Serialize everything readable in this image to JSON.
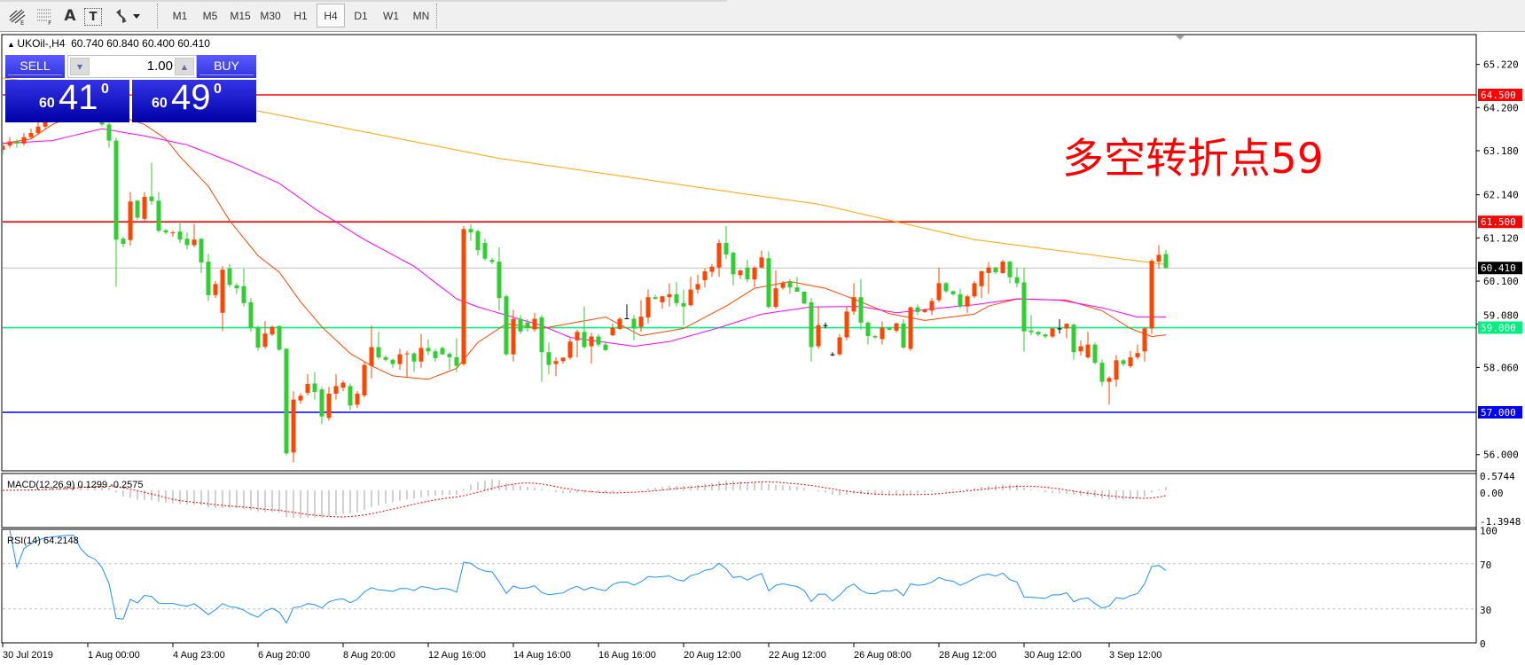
{
  "toolbar": {
    "tools": [
      {
        "icon": "fibonacci-expansion-icon"
      },
      {
        "icon": "fibonacci-lines-icon"
      },
      {
        "icon": "text-icon",
        "label": "A"
      },
      {
        "icon": "text-label-icon",
        "label": "T"
      },
      {
        "icon": "arrows-dropdown-icon"
      }
    ],
    "timeframes": [
      "M1",
      "M5",
      "M15",
      "M30",
      "H1",
      "H4",
      "D1",
      "W1",
      "MN"
    ],
    "active_timeframe": "H4"
  },
  "chart_header": {
    "symbol": "UKOil-,H4",
    "ohlc": "60.740 60.840 60.400 60.410"
  },
  "trade_panel": {
    "sell_label": "SELL",
    "buy_label": "BUY",
    "lot": "1.00",
    "sell_price": {
      "prefix": "60",
      "big": "41",
      "sup": "0"
    },
    "buy_price": {
      "prefix": "60",
      "big": "49",
      "sup": "0"
    }
  },
  "annotation": {
    "text": "多空转折点59",
    "color": "#ff0000"
  },
  "price_axis": {
    "ticks": [
      "65.220",
      "64.200",
      "63.180",
      "62.140",
      "61.120",
      "60.100",
      "59.080",
      "58.060",
      "56.000"
    ]
  },
  "price_tags": [
    {
      "label": "64.500",
      "value": 64.5,
      "color": "#ff0000"
    },
    {
      "label": "61.500",
      "value": 61.5,
      "color": "#ff0000"
    },
    {
      "label": "60.410",
      "value": 60.41,
      "color": "#000000"
    },
    {
      "label": "59.000",
      "value": 59.0,
      "color": "#00f080"
    },
    {
      "label": "57.000",
      "value": 57.0,
      "color": "#0000ff"
    }
  ],
  "macd": {
    "label": "MACD(12,26,9) 0.1299 -0.2575",
    "ticks": [
      "0.5744",
      "0.00",
      "-1.3948"
    ],
    "max": 0.5744,
    "min": -1.3948
  },
  "rsi": {
    "label": "RSI(14) 64.2148",
    "ticks": [
      "100",
      "70",
      "30",
      "0"
    ],
    "levels": [
      70,
      30
    ]
  },
  "time_axis": {
    "labels": [
      "30 Jul 2019",
      "1 Aug 00:00",
      "4 Aug 23:00",
      "6 Aug 20:00",
      "8 Aug 20:00",
      "12 Aug 16:00",
      "14 Aug 16:00",
      "16 Aug 16:00",
      "20 Aug 12:00",
      "22 Aug 12:00",
      "26 Aug 08:00",
      "28 Aug 12:00",
      "30 Aug 12:00",
      "3 Sep 12:00"
    ]
  },
  "chart_data": {
    "type": "candlestick",
    "symbol": "UKOil-",
    "timeframe": "H4",
    "ylim": [
      55.6,
      65.6
    ],
    "colors": {
      "up": "#ff4500",
      "down": "#32cd32",
      "doji": "#000000",
      "ma_fast": "#ff4500",
      "ma_mid": "#ff00ff",
      "ma_slow": "#ffa500",
      "rsi": "#1e90ff",
      "macd_hist": "#c0c0c0",
      "macd_signal": "#ff0000",
      "current_price": "#c0c0c0"
    },
    "candles_ohlc": [
      [
        63.2,
        63.4,
        63.1,
        63.3
      ],
      [
        63.3,
        63.5,
        63.25,
        63.4
      ],
      [
        63.4,
        63.45,
        63.25,
        63.35
      ],
      [
        63.35,
        63.6,
        63.3,
        63.5
      ],
      [
        63.5,
        63.7,
        63.45,
        63.6
      ],
      [
        63.6,
        63.85,
        63.55,
        63.75
      ],
      [
        63.75,
        64.0,
        63.7,
        63.9
      ],
      [
        63.9,
        64.1,
        63.85,
        64.0
      ],
      [
        64.0,
        64.2,
        63.9,
        64.1
      ],
      [
        64.1,
        64.3,
        64.0,
        64.2
      ],
      [
        64.2,
        64.4,
        64.1,
        64.25
      ],
      [
        64.25,
        64.3,
        64.0,
        64.1
      ],
      [
        64.1,
        64.2,
        63.9,
        64.0
      ],
      [
        64.0,
        64.1,
        63.85,
        63.95
      ],
      [
        63.95,
        64.0,
        63.75,
        63.8
      ],
      [
        63.8,
        63.85,
        63.25,
        63.42
      ],
      [
        63.42,
        63.49,
        59.97,
        61.08
      ],
      [
        61.1,
        61.15,
        60.9,
        60.98
      ],
      [
        61.07,
        62.2,
        60.94,
        61.98
      ],
      [
        62.0,
        62.02,
        61.55,
        61.6
      ],
      [
        61.57,
        62.2,
        61.5,
        62.09
      ],
      [
        62.1,
        62.9,
        61.9,
        61.99
      ],
      [
        62.0,
        62.2,
        61.25,
        61.29
      ],
      [
        61.3,
        61.33,
        61.2,
        61.25
      ],
      [
        61.24,
        61.3,
        61.15,
        61.25
      ],
      [
        61.27,
        61.5,
        61.0,
        61.08
      ],
      [
        61.1,
        61.25,
        60.85,
        60.95
      ],
      [
        60.95,
        61.45,
        60.9,
        61.08
      ],
      [
        61.1,
        61.12,
        60.29,
        60.54
      ],
      [
        60.56,
        60.75,
        59.63,
        59.77
      ],
      [
        59.77,
        60.1,
        59.7,
        60.03
      ],
      [
        59.35,
        60.45,
        58.92,
        60.37
      ],
      [
        60.4,
        60.5,
        59.95,
        60.01
      ],
      [
        60.0,
        60.05,
        59.8,
        59.93
      ],
      [
        59.98,
        60.4,
        59.5,
        59.58
      ],
      [
        59.6,
        59.7,
        58.9,
        59.0
      ],
      [
        59.0,
        59.05,
        58.45,
        58.53
      ],
      [
        58.55,
        59.15,
        58.5,
        58.86
      ],
      [
        58.84,
        59.05,
        58.8,
        59.02
      ],
      [
        59.04,
        59.05,
        58.45,
        58.48
      ],
      [
        58.5,
        58.52,
        55.98,
        56.03
      ],
      [
        56.05,
        57.5,
        55.82,
        57.3
      ],
      [
        57.28,
        57.45,
        57.2,
        57.39
      ],
      [
        57.46,
        57.9,
        57.4,
        57.67
      ],
      [
        57.68,
        57.95,
        57.3,
        57.48
      ],
      [
        57.54,
        57.6,
        56.72,
        56.9
      ],
      [
        56.87,
        57.6,
        56.8,
        57.44
      ],
      [
        57.44,
        57.9,
        57.3,
        57.62
      ],
      [
        57.58,
        57.75,
        57.5,
        57.7
      ],
      [
        57.62,
        57.68,
        57.05,
        57.16
      ],
      [
        57.18,
        57.5,
        57.1,
        57.44
      ],
      [
        57.4,
        58.2,
        57.35,
        58.12
      ],
      [
        58.1,
        59.05,
        57.8,
        58.54
      ],
      [
        58.54,
        58.9,
        58.25,
        58.3
      ],
      [
        58.3,
        58.35,
        58.2,
        58.24
      ],
      [
        58.24,
        58.27,
        58.05,
        58.14
      ],
      [
        58.14,
        58.5,
        58.0,
        58.37
      ],
      [
        58.37,
        58.45,
        57.83,
        58.39
      ],
      [
        58.39,
        58.42,
        57.95,
        58.2
      ],
      [
        58.2,
        58.85,
        58.05,
        58.52
      ],
      [
        58.52,
        58.72,
        58.35,
        58.44
      ],
      [
        58.44,
        58.5,
        58.2,
        58.28
      ],
      [
        58.52,
        58.55,
        58.35,
        58.37
      ],
      [
        58.38,
        58.42,
        58.0,
        58.3
      ],
      [
        58.3,
        58.75,
        57.95,
        58.1
      ],
      [
        58.14,
        61.4,
        58.1,
        61.33
      ],
      [
        61.33,
        61.45,
        61.05,
        61.25
      ],
      [
        61.28,
        61.32,
        60.7,
        60.83
      ],
      [
        61.0,
        61.1,
        60.58,
        60.63
      ],
      [
        60.6,
        60.65,
        60.5,
        60.55
      ],
      [
        60.56,
        60.9,
        59.4,
        59.7
      ],
      [
        59.74,
        59.78,
        58.33,
        58.37
      ],
      [
        58.37,
        59.42,
        58.2,
        59.21
      ],
      [
        59.21,
        59.3,
        58.85,
        58.91
      ],
      [
        59.12,
        59.2,
        58.9,
        58.99
      ],
      [
        58.96,
        59.35,
        58.9,
        59.21
      ],
      [
        59.24,
        59.3,
        57.72,
        58.42
      ],
      [
        58.42,
        58.65,
        57.9,
        58.12
      ],
      [
        58.14,
        58.3,
        57.85,
        58.21
      ],
      [
        58.21,
        58.3,
        58.15,
        58.29
      ],
      [
        58.29,
        58.75,
        58.25,
        58.67
      ],
      [
        58.7,
        58.95,
        58.3,
        58.9
      ],
      [
        58.9,
        59.5,
        58.5,
        58.54
      ],
      [
        58.56,
        58.88,
        58.15,
        58.79
      ],
      [
        58.79,
        58.85,
        58.55,
        58.6
      ],
      [
        58.6,
        58.68,
        58.45,
        58.47
      ],
      [
        58.82,
        59.1,
        58.8,
        58.99
      ],
      [
        58.97,
        59.25,
        58.95,
        59.21
      ],
      [
        59.22,
        59.55,
        59.2,
        59.22
      ],
      [
        59.21,
        59.3,
        58.7,
        58.98
      ],
      [
        59.02,
        59.65,
        58.9,
        59.26
      ],
      [
        59.24,
        59.9,
        59.1,
        59.72
      ],
      [
        59.72,
        59.78,
        59.66,
        59.68
      ],
      [
        59.6,
        59.75,
        59.45,
        59.74
      ],
      [
        59.72,
        60.05,
        59.5,
        59.79
      ],
      [
        59.79,
        60.08,
        59.5,
        59.58
      ],
      [
        59.58,
        59.9,
        59.05,
        59.5
      ],
      [
        59.53,
        60.2,
        59.5,
        59.9
      ],
      [
        59.9,
        60.25,
        59.8,
        60.03
      ],
      [
        60.12,
        60.4,
        59.95,
        60.33
      ],
      [
        60.32,
        60.5,
        60.2,
        60.44
      ],
      [
        60.42,
        61.08,
        60.2,
        61.0
      ],
      [
        61.0,
        61.4,
        60.62,
        60.73
      ],
      [
        60.77,
        60.8,
        60.0,
        60.26
      ],
      [
        60.24,
        60.38,
        60.15,
        60.35
      ],
      [
        60.42,
        60.6,
        60.08,
        60.14
      ],
      [
        60.14,
        60.45,
        59.95,
        60.42
      ],
      [
        60.42,
        60.82,
        60.4,
        60.66
      ],
      [
        60.64,
        60.8,
        59.45,
        59.49
      ],
      [
        59.49,
        60.35,
        59.45,
        59.93
      ],
      [
        59.94,
        60.1,
        59.9,
        60.05
      ],
      [
        60.08,
        60.15,
        59.8,
        59.95
      ],
      [
        59.95,
        60.2,
        59.85,
        59.85
      ],
      [
        59.85,
        59.85,
        59.55,
        59.57
      ],
      [
        59.6,
        59.7,
        58.2,
        58.54
      ],
      [
        58.56,
        59.5,
        58.5,
        59.06
      ],
      [
        59.06,
        59.12,
        58.98,
        59.06
      ],
      [
        58.37,
        58.42,
        58.33,
        58.37
      ],
      [
        58.37,
        58.85,
        58.33,
        58.77
      ],
      [
        58.77,
        59.5,
        58.7,
        59.38
      ],
      [
        59.38,
        60.05,
        59.3,
        59.72
      ],
      [
        59.72,
        60.15,
        58.95,
        59.12
      ],
      [
        59.12,
        59.15,
        58.6,
        58.8
      ],
      [
        58.8,
        58.82,
        58.74,
        58.77
      ],
      [
        58.73,
        59.15,
        58.6,
        59.0
      ],
      [
        59.0,
        59.02,
        58.93,
        58.95
      ],
      [
        58.93,
        59.12,
        58.88,
        59.1
      ],
      [
        59.1,
        59.2,
        58.5,
        58.53
      ],
      [
        58.5,
        59.5,
        58.45,
        59.48
      ],
      [
        59.48,
        59.55,
        59.3,
        59.37
      ],
      [
        59.37,
        59.45,
        59.35,
        59.42
      ],
      [
        59.4,
        59.7,
        59.3,
        59.63
      ],
      [
        59.65,
        60.42,
        59.6,
        60.05
      ],
      [
        60.05,
        60.08,
        59.82,
        59.86
      ],
      [
        59.86,
        59.88,
        59.75,
        59.79
      ],
      [
        59.79,
        59.92,
        59.45,
        59.5
      ],
      [
        59.5,
        59.78,
        59.35,
        59.74
      ],
      [
        59.74,
        60.1,
        59.7,
        60.05
      ],
      [
        59.98,
        60.35,
        59.7,
        60.33
      ],
      [
        60.29,
        60.55,
        59.8,
        60.42
      ],
      [
        60.42,
        60.44,
        60.27,
        60.31
      ],
      [
        60.29,
        60.6,
        60.27,
        60.56
      ],
      [
        60.56,
        60.58,
        60.05,
        60.19
      ],
      [
        60.19,
        60.42,
        59.95,
        60.05
      ],
      [
        60.07,
        60.42,
        58.43,
        58.91
      ],
      [
        58.93,
        59.3,
        58.82,
        58.89
      ],
      [
        58.9,
        58.92,
        58.8,
        58.84
      ],
      [
        58.84,
        58.86,
        58.75,
        58.79
      ],
      [
        58.79,
        59.0,
        58.75,
        58.98
      ],
      [
        58.98,
        59.2,
        58.86,
        58.98
      ],
      [
        58.98,
        59.1,
        58.75,
        59.09
      ],
      [
        59.07,
        59.1,
        58.24,
        58.42
      ],
      [
        58.44,
        58.7,
        58.34,
        58.56
      ],
      [
        58.3,
        58.9,
        58.27,
        58.6
      ],
      [
        58.6,
        58.65,
        58.13,
        58.17
      ],
      [
        58.17,
        58.25,
        57.62,
        57.72
      ],
      [
        57.72,
        57.85,
        57.18,
        57.81
      ],
      [
        57.77,
        58.35,
        57.6,
        58.23
      ],
      [
        58.23,
        58.26,
        58.09,
        58.14
      ],
      [
        58.09,
        58.45,
        58.05,
        58.3
      ],
      [
        58.3,
        58.6,
        58.25,
        58.4
      ],
      [
        58.44,
        59.02,
        58.2,
        58.98
      ],
      [
        58.98,
        60.62,
        58.85,
        60.58
      ],
      [
        60.56,
        60.95,
        60.4,
        60.72
      ],
      [
        60.74,
        60.84,
        60.4,
        60.41
      ]
    ],
    "moving_averages": [
      {
        "key": "ma_fast",
        "samples_candle_value": [
          [
            0,
            63.35
          ],
          [
            4,
            63.46
          ],
          [
            7,
            63.8
          ],
          [
            13,
            64.2
          ],
          [
            20,
            63.8
          ],
          [
            23,
            63.46
          ],
          [
            25,
            63.04
          ],
          [
            29,
            62.34
          ],
          [
            32,
            61.53
          ],
          [
            36,
            60.7
          ],
          [
            39,
            60.31
          ],
          [
            42,
            59.61
          ],
          [
            45,
            59.02
          ],
          [
            49,
            58.39
          ],
          [
            52,
            58.1
          ],
          [
            55,
            57.86
          ],
          [
            60,
            57.78
          ],
          [
            64,
            58.04
          ],
          [
            67,
            58.65
          ],
          [
            71,
            59.09
          ],
          [
            76,
            58.98
          ],
          [
            85,
            59.25
          ],
          [
            90,
            58.81
          ],
          [
            96,
            58.98
          ],
          [
            102,
            59.51
          ],
          [
            106,
            59.93
          ],
          [
            111,
            60.09
          ],
          [
            116,
            59.93
          ],
          [
            121,
            59.61
          ],
          [
            125,
            59.33
          ],
          [
            130,
            59.17
          ],
          [
            137,
            59.32
          ],
          [
            139,
            59.51
          ],
          [
            143,
            59.68
          ],
          [
            150,
            59.65
          ],
          [
            155,
            59.4
          ],
          [
            159,
            58.98
          ],
          [
            162,
            58.79
          ],
          [
            164,
            58.83
          ]
        ]
      },
      {
        "key": "ma_mid",
        "samples_candle_value": [
          [
            0,
            63.35
          ],
          [
            7,
            63.42
          ],
          [
            14,
            63.7
          ],
          [
            20,
            63.53
          ],
          [
            26,
            63.32
          ],
          [
            33,
            62.86
          ],
          [
            39,
            62.41
          ],
          [
            44,
            61.81
          ],
          [
            51,
            61.08
          ],
          [
            58,
            60.45
          ],
          [
            64,
            59.68
          ],
          [
            67,
            59.49
          ],
          [
            76,
            59.05
          ],
          [
            80,
            58.77
          ],
          [
            89,
            58.56
          ],
          [
            94,
            58.67
          ],
          [
            101,
            59.0
          ],
          [
            107,
            59.32
          ],
          [
            114,
            59.49
          ],
          [
            121,
            59.5
          ],
          [
            126,
            59.35
          ],
          [
            132,
            59.46
          ],
          [
            137,
            59.54
          ],
          [
            143,
            59.68
          ],
          [
            149,
            59.65
          ],
          [
            155,
            59.47
          ],
          [
            160,
            59.25
          ],
          [
            164,
            59.25
          ]
        ]
      },
      {
        "key": "ma_slow",
        "samples_candle_value": [
          [
            0,
            64.9
          ],
          [
            36,
            64.12
          ],
          [
            70,
            63.0
          ],
          [
            105,
            62.15
          ],
          [
            115,
            61.92
          ],
          [
            137,
            61.08
          ],
          [
            164,
            60.49
          ]
        ]
      }
    ],
    "horizontal_lines": [
      64.5,
      61.5,
      59.0,
      57.0
    ],
    "current_price": 60.41
  }
}
